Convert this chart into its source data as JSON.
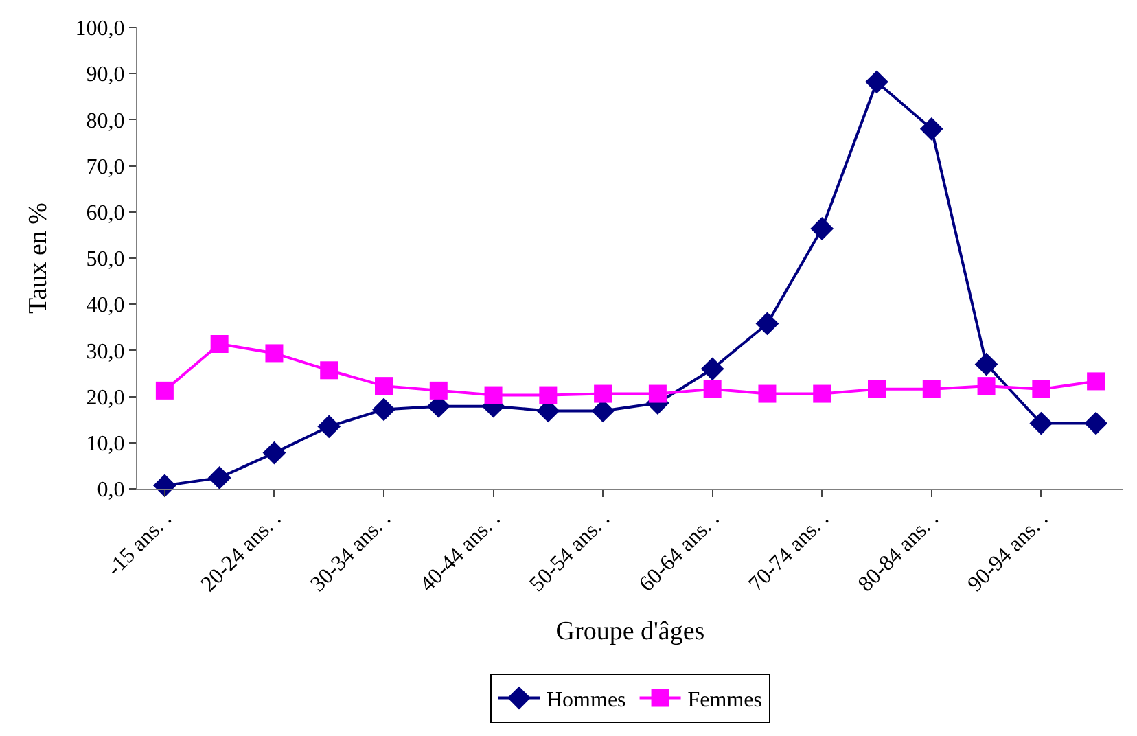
{
  "chart_data": {
    "type": "line",
    "xlabel": "Groupe d'âges",
    "ylabel": "Taux en %",
    "categories": [
      "-15 ans. .",
      null,
      "20-24 ans. .",
      null,
      "30-34 ans. .",
      null,
      "40-44 ans. .",
      null,
      "50-54 ans. .",
      null,
      "60-64 ans. .",
      null,
      "70-74 ans. .",
      null,
      "80-84 ans. .",
      null,
      "90-94 ans. .",
      null
    ],
    "series": [
      {
        "name": "Hommes",
        "color": "#000080",
        "marker": "diamond",
        "values": [
          0.7,
          2.4,
          7.8,
          13.5,
          17.2,
          17.9,
          17.9,
          16.9,
          16.9,
          18.6,
          26.0,
          35.8,
          56.4,
          88.2,
          78.0,
          27.0,
          14.2,
          14.2
        ]
      },
      {
        "name": "Femmes",
        "color": "#ff00ff",
        "marker": "square",
        "values": [
          21.3,
          31.4,
          29.4,
          25.7,
          22.3,
          21.3,
          20.3,
          20.3,
          20.6,
          20.6,
          21.6,
          20.6,
          20.6,
          21.6,
          21.6,
          22.3,
          21.6,
          23.3
        ]
      }
    ],
    "ylim": [
      0,
      100
    ],
    "yticks": [
      {
        "value": 0,
        "label": "0,0"
      },
      {
        "value": 10,
        "label": "10,0"
      },
      {
        "value": 20,
        "label": "20,0"
      },
      {
        "value": 30,
        "label": "30,0"
      },
      {
        "value": 40,
        "label": "40,0"
      },
      {
        "value": 50,
        "label": "50,0"
      },
      {
        "value": 60,
        "label": "60,0"
      },
      {
        "value": 70,
        "label": "70,0"
      },
      {
        "value": 80,
        "label": "80,0"
      },
      {
        "value": 90,
        "label": "90,0"
      },
      {
        "value": 100,
        "label": "100,0"
      }
    ],
    "legend": "bottom",
    "line_style": "solid"
  }
}
